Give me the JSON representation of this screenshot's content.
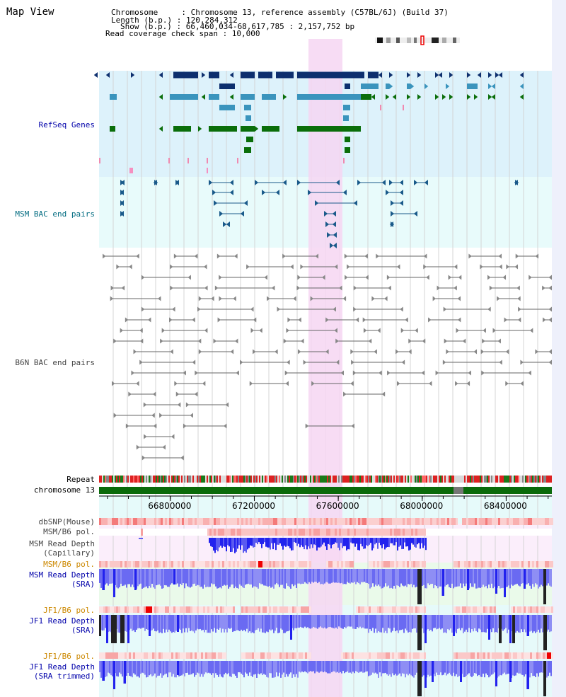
{
  "title": "Map View",
  "info": {
    "chromosome_line": "Chromosome     : Chromosome 13, reference assembly (C57BL/6J) (Build 37)",
    "length_line": "Length (b.p.) : 120,284,312",
    "show_line": "Show (b.p.) : 66,460,034-68,617,785 : 2,157,752 bp",
    "coverage_line": "Read coverage check span : 10,000"
  },
  "tracks": {
    "refseq": "RefSeq Genes",
    "msm_bac": "MSM BAC end pairs",
    "b6n_bac": "B6N BAC end pairs",
    "repeat": "Repeat",
    "chromosome": "chromosome 13",
    "dbsnp": "dbSNP(Mouse)",
    "msm_b6_pol_cap": "MSM/B6 pol.",
    "msm_depth_cap_1": "MSM Read Depth",
    "msm_depth_cap_2": "(Capillary)",
    "msm_b6_pol_sra": "MSM/B6 pol.",
    "msm_depth_sra_1": "MSM Read Depth",
    "msm_depth_sra_2": "(SRA)",
    "jf1_b6_pol": "JF1/B6 pol.",
    "jf1_depth_1": "JF1 Read Depth",
    "jf1_depth_2": "(SRA)",
    "jf1_b6_pol_trim": "JF1/B6 pol.",
    "jf1_depth_trim_1": "JF1 Read Depth",
    "jf1_depth_trim_2": "(SRA trimmed)"
  },
  "axis": {
    "ticks": [
      {
        "pos": 66800000,
        "label": "66800000"
      },
      {
        "pos": 67200000,
        "label": "67200000"
      },
      {
        "pos": 67600000,
        "label": "67600000"
      },
      {
        "pos": 68000000,
        "label": "68000000"
      },
      {
        "pos": 68400000,
        "label": "68400000"
      }
    ],
    "range": [
      66460034,
      68617785
    ]
  },
  "colors": {
    "refseq_bg": "#ddf2fb",
    "msm_bac_bg": "#e8fbfb",
    "highlight": "#f6d6f2",
    "gene_dark": "#0d2f6e",
    "gene_mid": "#3a94bd",
    "gene_green": "#0a6e0a",
    "chromosome": "#0a6a0a",
    "depth_blue": "#2222ee",
    "pol_red": "#e83c3c",
    "label_blue": "#0000aa",
    "label_teal": "#006b80",
    "label_orange": "#cc8800"
  }
}
